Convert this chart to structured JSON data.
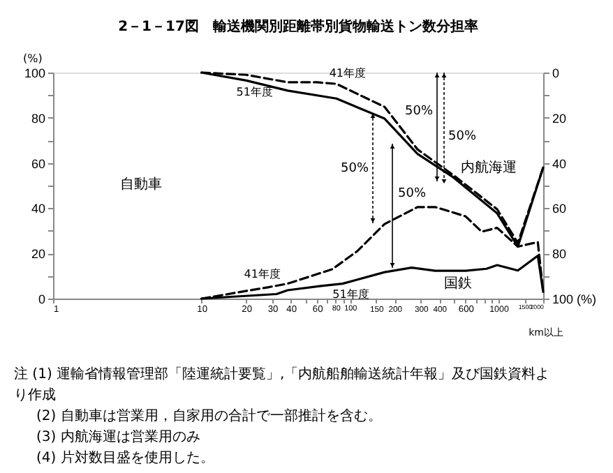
{
  "chart_data": {
    "type": "line",
    "title": "2－1－17図　輸送機関別距離帯別貨物輸送トン数分担率",
    "ylabel": "(%)",
    "xlabel": "km以上",
    "log": "x",
    "grid": false,
    "legend": false,
    "marker": "none",
    "xlim": [
      1,
      2000
    ],
    "xticks": [
      1,
      10,
      20,
      30,
      40,
      {
        "value": 50,
        "label": null
      },
      60,
      {
        "value": 70,
        "label": null
      },
      80,
      {
        "value": 90,
        "label": null
      },
      100,
      150,
      200,
      300,
      400,
      {
        "value": 500,
        "label": null
      },
      600,
      {
        "value": 700,
        "label": null
      },
      {
        "value": 800,
        "label": null
      },
      {
        "value": 900,
        "label": null
      },
      1000,
      1500,
      2000
    ],
    "ylim": [
      0,
      100
    ],
    "yticks": [
      0,
      {
        "value": 10,
        "label": null
      },
      20,
      {
        "value": 30,
        "label": null
      },
      40,
      {
        "value": 50,
        "label": null
      },
      60,
      {
        "value": 70,
        "label": null
      },
      80,
      {
        "value": 90,
        "label": null
      },
      100
    ],
    "y2lim": [
      100,
      0
    ],
    "y2ticks": [
      0,
      {
        "value": 10,
        "label": null
      },
      20,
      {
        "value": 30,
        "label": null
      },
      40,
      {
        "value": 50,
        "label": null
      },
      60,
      {
        "value": 70,
        "label": null
      },
      80,
      {
        "value": 90,
        "label": null
      },
      {
        "value": 100,
        "label": "100 (%)"
      }
    ],
    "series": [
      {
        "name": "41年度",
        "color": "#000000",
        "line_style": "dashed",
        "x": [
          10,
          20,
          38,
          60,
          81,
          171,
          285,
          488,
          980,
          1350,
          2000
        ],
        "values": [
          100,
          99,
          95.7,
          95.7,
          95,
          84.8,
          66,
          55,
          39.5,
          24.6,
          58
        ]
      },
      {
        "name": "51年度",
        "color": "#000000",
        "line_style": "solid",
        "x": [
          10,
          20,
          38,
          81,
          171,
          285,
          488,
          980,
          1350,
          2000
        ],
        "values": [
          100,
          96.5,
          92,
          88.5,
          79.6,
          64,
          54,
          37.7,
          23,
          58
        ]
      },
      {
        "name": "41年度",
        "color": "#000000",
        "line_style": "dashed",
        "x": [
          10,
          28,
          38,
          76,
          112,
          171,
          285,
          375,
          600,
          770,
          980,
          1350,
          1840,
          2000
        ],
        "values": [
          0,
          5,
          6.6,
          13,
          21,
          33,
          40.5,
          40.5,
          36.4,
          29.6,
          31.3,
          23,
          25,
          3
        ]
      },
      {
        "name": "51年度",
        "color": "#000000",
        "line_style": "solid",
        "x": [
          10,
          32,
          38,
          64,
          89,
          171,
          260,
          375,
          600,
          830,
          980,
          1350,
          1840,
          2000
        ],
        "values": [
          0,
          2,
          3.7,
          5.6,
          6.6,
          11.7,
          13.7,
          12.3,
          12.3,
          13.2,
          14.8,
          12.4,
          19,
          3
        ]
      }
    ],
    "annotations": [
      "自動車",
      "内航海運",
      "国鉄",
      "50%",
      "50%",
      "50%",
      "50%",
      "注 (1) 運輸省情報管理部「陸運統計要覧」,「内航船舶輸送統計年報」及び国鉄資料より作成",
      "(2) 自動車は営業用，自家用の合計で一部推計を含む。",
      "(3) 内航海運は営業用のみ",
      "(4) 片対数目盛を使用した。"
    ]
  }
}
